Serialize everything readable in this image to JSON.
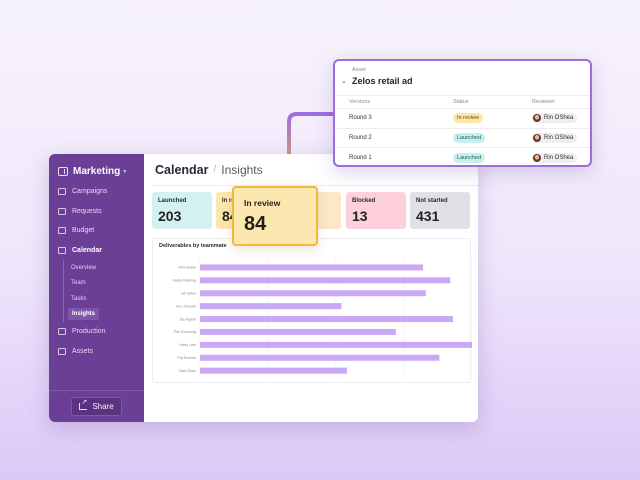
{
  "sidebar": {
    "title": "Marketing",
    "items": [
      {
        "label": "Campaigns",
        "icon": "megaphone-icon"
      },
      {
        "label": "Requests",
        "icon": "inbox-icon"
      },
      {
        "label": "Budget",
        "icon": "wallet-icon"
      },
      {
        "label": "Calendar",
        "icon": "calendar-icon",
        "active": true
      }
    ],
    "subitems": [
      "Overview",
      "Team",
      "Tasks",
      "Insights"
    ],
    "active_subitem": "Insights",
    "items_after": [
      {
        "label": "Production",
        "icon": "wrench-icon"
      },
      {
        "label": "Assets",
        "icon": "image-icon"
      }
    ],
    "share_label": "Share"
  },
  "breadcrumb": {
    "first": "Calendar",
    "separator": "/",
    "second": "Insights"
  },
  "stats": [
    {
      "label": "Launched",
      "value": "203",
      "color": "#d3f1f1"
    },
    {
      "label": "In review",
      "value": "84",
      "color": "#fde7b0"
    },
    {
      "label": "",
      "value": "",
      "color": "#fde7c9"
    },
    {
      "label": "Blocked",
      "value": "13",
      "color": "#fdd0dc"
    },
    {
      "label": "Not started",
      "value": "431",
      "color": "#e1e0e6"
    }
  ],
  "highlight": {
    "label": "In review",
    "value": "84"
  },
  "chart_data": {
    "type": "bar",
    "orientation": "horizontal",
    "title": "Deliverables by teammate",
    "categories": [
      "Tomi Soare",
      "Felice Fleming",
      "Gil Gatori",
      "Kiro Tewede",
      "Jac Argent",
      "Pat Gumming",
      "Harry Lam",
      "Pat Everest",
      "Sam Sodo"
    ],
    "values": [
      82,
      92,
      83,
      52,
      93,
      72,
      100,
      88,
      54
    ],
    "xlim": [
      0,
      100
    ],
    "bar_color": "#c9a9f3",
    "grid": true
  },
  "asset_panel": {
    "label": "Asset",
    "title": "Zelos retail ad",
    "columns": [
      "Versions",
      "Status",
      "Reviewer"
    ],
    "rows": [
      {
        "version": "Round 3",
        "status": "In review",
        "reviewer": "Rin OShea"
      },
      {
        "version": "Round 2",
        "status": "Launched",
        "reviewer": "Rin OShea"
      },
      {
        "version": "Round 1",
        "status": "Launched",
        "reviewer": "Rin OShea"
      }
    ],
    "accent": "#9b6de0"
  }
}
